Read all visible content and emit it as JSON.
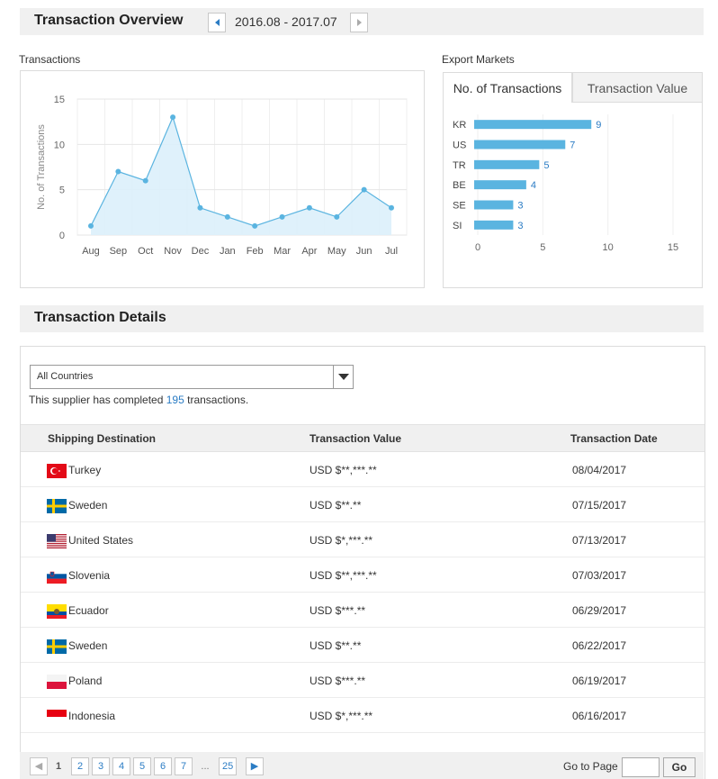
{
  "overview": {
    "title": "Transaction Overview",
    "period": "2016.08 - 2017.07"
  },
  "transactions_chart_label": "Transactions",
  "export_markets_label": "Export Markets",
  "tabs": [
    {
      "label": "No. of Transactions",
      "active": true
    },
    {
      "label": "Transaction Value",
      "active": false
    }
  ],
  "chart_data": [
    {
      "type": "area",
      "ylabel": "No. of Transactions",
      "ylim": [
        0,
        15
      ],
      "yticks": [
        "0",
        "5",
        "10",
        "15"
      ],
      "categories": [
        "Aug",
        "Sep",
        "Oct",
        "Nov",
        "Dec",
        "Jan",
        "Feb",
        "Mar",
        "Apr",
        "May",
        "Jun",
        "Jul"
      ],
      "values": [
        1,
        7,
        6,
        13,
        3,
        2,
        1,
        2,
        3,
        2,
        5,
        3
      ],
      "color": "#5ab4e0",
      "fill": "#dcf0fb",
      "grid": true
    },
    {
      "type": "bar",
      "orientation": "horizontal",
      "categories": [
        "KR",
        "US",
        "TR",
        "BE",
        "SE",
        "SI"
      ],
      "values": [
        9,
        7,
        5,
        4,
        3,
        3
      ],
      "xlim": [
        0,
        15
      ],
      "xticks": [
        "0",
        "5",
        "10",
        "15"
      ],
      "color": "#5ab4e0",
      "data_labels": true
    }
  ],
  "details": {
    "title": "Transaction Details",
    "country_filter": "All Countries",
    "supplier_text_pre": "This supplier has completed ",
    "supplier_count": "195",
    "supplier_text_post": " transactions."
  },
  "table": {
    "headers": [
      "Shipping Destination",
      "Transaction Value",
      "Transaction Date"
    ],
    "rows": [
      {
        "country": "Turkey",
        "flag": "flag-turkey",
        "value": "USD $**,***.**",
        "date": "08/04/2017"
      },
      {
        "country": "Sweden",
        "flag": "flag-sweden",
        "value": "USD $**.**",
        "date": "07/15/2017"
      },
      {
        "country": "United States",
        "flag": "flag-usa",
        "value": "USD $*,***.**",
        "date": "07/13/2017"
      },
      {
        "country": "Slovenia",
        "flag": "flag-slovenia",
        "value": "USD $**,***.**",
        "date": "07/03/2017"
      },
      {
        "country": "Ecuador",
        "flag": "flag-ecuador",
        "value": "USD $***.**",
        "date": "06/29/2017"
      },
      {
        "country": "Sweden",
        "flag": "flag-sweden",
        "value": "USD $**.**",
        "date": "06/22/2017"
      },
      {
        "country": "Poland",
        "flag": "flag-poland",
        "value": "USD $***.**",
        "date": "06/19/2017"
      },
      {
        "country": "Indonesia",
        "flag": "flag-indonesia",
        "value": "USD $*,***.**",
        "date": "06/16/2017"
      }
    ]
  },
  "pagination": {
    "pages": [
      "1",
      "2",
      "3",
      "4",
      "5",
      "6",
      "7",
      "...",
      "25"
    ],
    "current": "1",
    "goto_label": "Go to Page",
    "go_button": "Go"
  }
}
